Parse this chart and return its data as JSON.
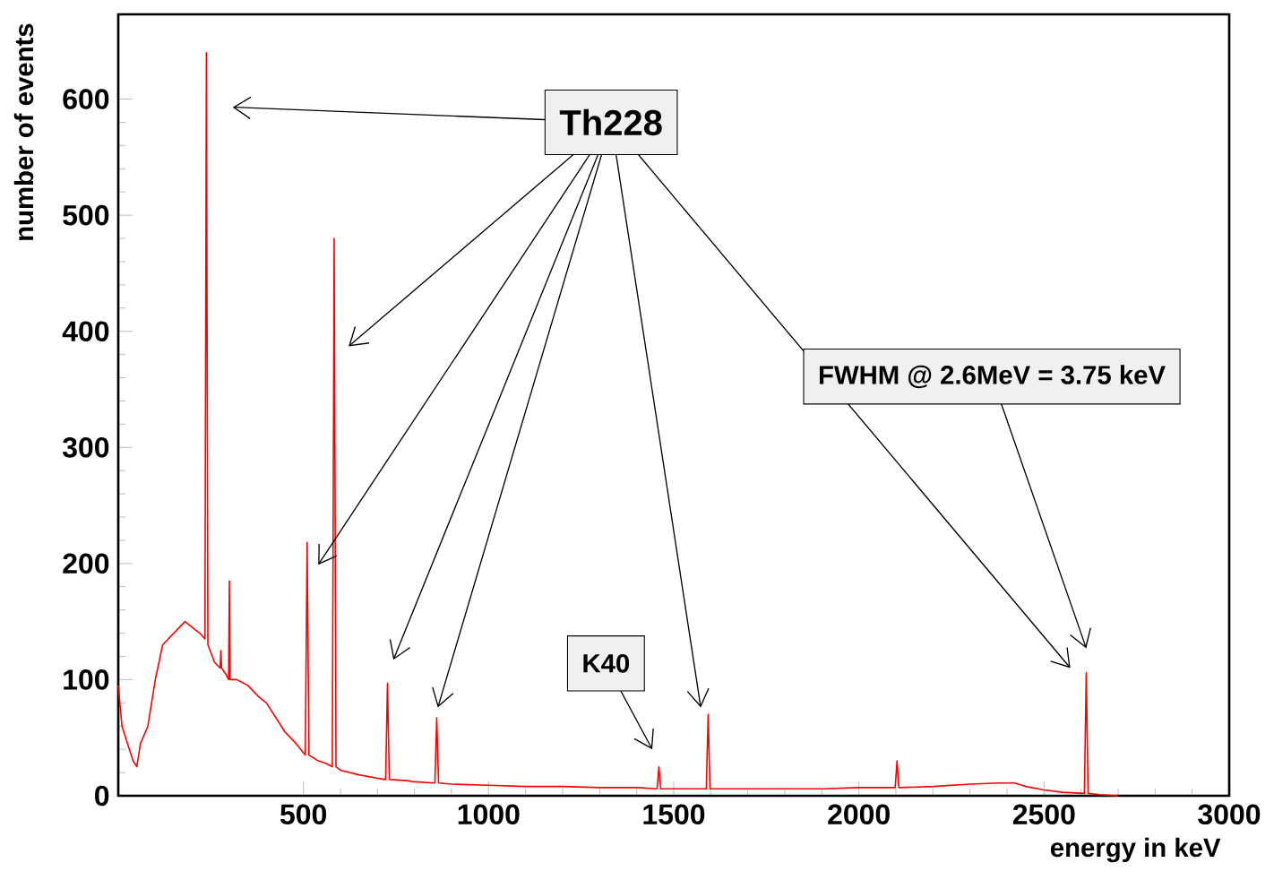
{
  "chart_data": {
    "type": "line",
    "xlabel": "energy in keV",
    "ylabel": "number of events",
    "x": [
      0,
      10,
      20,
      30,
      40,
      50,
      60,
      80,
      100,
      120,
      150,
      180,
      200,
      220,
      234,
      238,
      242,
      260,
      275,
      277,
      279,
      290,
      298,
      300,
      302,
      320,
      350,
      380,
      400,
      430,
      450,
      480,
      505,
      510,
      515,
      540,
      560,
      578,
      583,
      588,
      600,
      650,
      700,
      722,
      727,
      732,
      780,
      800,
      855,
      860,
      865,
      900,
      1000,
      1100,
      1200,
      1300,
      1400,
      1455,
      1460,
      1465,
      1500,
      1588,
      1593,
      1598,
      1700,
      1800,
      1900,
      2000,
      2098,
      2103,
      2108,
      2200,
      2300,
      2380,
      2420,
      2450,
      2500,
      2550,
      2609,
      2614,
      2619,
      2650,
      2700
    ],
    "series": [
      {
        "color": "#ff0000",
        "values": [
          95,
          60,
          50,
          40,
          30,
          25,
          45,
          60,
          100,
          130,
          140,
          150,
          145,
          140,
          135,
          640,
          130,
          115,
          110,
          125,
          110,
          105,
          100,
          185,
          100,
          100,
          95,
          85,
          80,
          65,
          55,
          45,
          35,
          218,
          35,
          30,
          28,
          25,
          480,
          25,
          22,
          18,
          15,
          14,
          97,
          14,
          13,
          12,
          11,
          67,
          11,
          10,
          9,
          8,
          8,
          7,
          7,
          6,
          25,
          6,
          6,
          6,
          70,
          6,
          6,
          6,
          6,
          7,
          7,
          30,
          7,
          8,
          10,
          11,
          11,
          8,
          5,
          3,
          2,
          106,
          2,
          1,
          0
        ]
      }
    ],
    "xlim": [
      0,
      3000
    ],
    "ylim": [
      0,
      673
    ],
    "xticks": [
      500,
      1000,
      1500,
      2000,
      2500,
      3000
    ],
    "yticks": [
      0,
      100,
      200,
      300,
      400,
      500,
      600
    ],
    "grid": false,
    "marker": "none",
    "line_style": "solid",
    "annotations": [
      "Th228",
      "K40",
      "FWHM @ 2.6MeV = 3.75 keV"
    ]
  }
}
